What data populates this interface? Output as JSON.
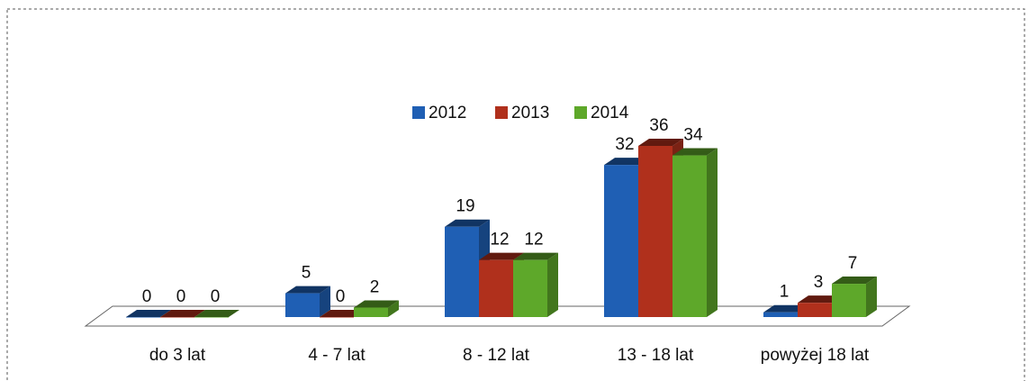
{
  "chart_data": {
    "type": "bar3d",
    "categories": [
      "do 3 lat",
      "4 - 7 lat",
      "8 - 12 lat",
      "13 - 18 lat",
      "powyżej 18 lat"
    ],
    "series": [
      {
        "name": "2012",
        "color": "#1f5fb4",
        "values": [
          0,
          5,
          19,
          32,
          1
        ]
      },
      {
        "name": "2013",
        "color": "#b0301c",
        "values": [
          0,
          0,
          12,
          36,
          3
        ]
      },
      {
        "name": "2014",
        "color": "#5ea82a",
        "values": [
          0,
          2,
          12,
          34,
          7
        ]
      }
    ],
    "legend": "top"
  }
}
